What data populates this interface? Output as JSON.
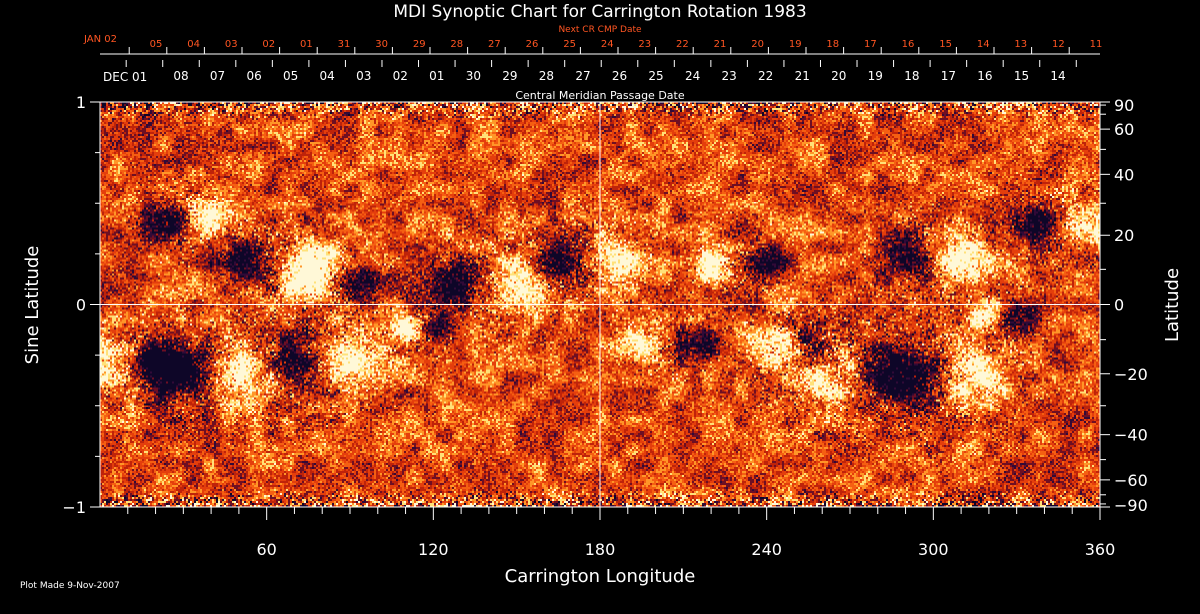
{
  "chart_data": {
    "type": "heatmap",
    "title": "MDI Synoptic Chart for Carrington Rotation 1983",
    "xlabel": "Carrington Longitude",
    "ylabel_left": "Sine Latitude",
    "ylabel_right": "Latitude",
    "xlim": [
      0,
      360
    ],
    "ylim": [
      -1,
      1
    ],
    "x_ticks_labeled": [
      60,
      120,
      180,
      240,
      300,
      360
    ],
    "x_minor_step": 10,
    "y_left_ticks": [
      {
        "v": 1,
        "label": "1"
      },
      {
        "v": 0,
        "label": "0"
      },
      {
        "v": -1,
        "label": "−1"
      }
    ],
    "y_left_minor": [
      -0.75,
      -0.5,
      -0.25,
      0.25,
      0.5,
      0.75
    ],
    "y_right_labeled": [
      90,
      60,
      40,
      20,
      0,
      -20,
      -40,
      -60,
      -90
    ],
    "y_right_labels": [
      "90",
      "60",
      "40",
      "20",
      "0",
      "−20",
      "−40",
      "−60",
      "−90"
    ],
    "y_right_minor_step": 10,
    "crosshair": {
      "x": 180,
      "y": 0
    },
    "colors": {
      "background": "#000000",
      "text": "#ffffff",
      "next_cr_text": "#ff5522",
      "field_neutral": "#e8400c",
      "field_positive": "#fff4c8",
      "field_negative": "#14093e"
    },
    "bipolar_regions": [
      {
        "lon": 12,
        "slat": -0.3,
        "lead": "positive",
        "sep": 14,
        "size": 1.2
      },
      {
        "lon": 32,
        "slat": 0.42,
        "lead": "negative",
        "sep": 10,
        "size": 0.9
      },
      {
        "lon": 40,
        "slat": -0.32,
        "lead": "negative",
        "sep": 16,
        "size": 1.3
      },
      {
        "lon": 65,
        "slat": 0.22,
        "lead": "negative",
        "sep": 18,
        "size": 1.0
      },
      {
        "lon": 80,
        "slat": -0.28,
        "lead": "negative",
        "sep": 14,
        "size": 1.4
      },
      {
        "lon": 85,
        "slat": 0.1,
        "lead": "positive",
        "sep": 14,
        "size": 0.9
      },
      {
        "lon": 115,
        "slat": -0.12,
        "lead": "positive",
        "sep": 6,
        "size": 0.6
      },
      {
        "lon": 140,
        "slat": 0.1,
        "lead": "negative",
        "sep": 12,
        "size": 1.2
      },
      {
        "lon": 176,
        "slat": 0.22,
        "lead": "negative",
        "sep": 12,
        "size": 1.1
      },
      {
        "lon": 205,
        "slat": -0.2,
        "lead": "positive",
        "sep": 14,
        "size": 0.8
      },
      {
        "lon": 230,
        "slat": 0.2,
        "lead": "positive",
        "sep": 12,
        "size": 0.9
      },
      {
        "lon": 250,
        "slat": -0.2,
        "lead": "positive",
        "sep": 8,
        "size": 0.9
      },
      {
        "lon": 272,
        "slat": -0.34,
        "lead": "positive",
        "sep": 10,
        "size": 1.5
      },
      {
        "lon": 300,
        "slat": 0.22,
        "lead": "negative",
        "sep": 12,
        "size": 1.1
      },
      {
        "lon": 305,
        "slat": -0.36,
        "lead": "negative",
        "sep": 12,
        "size": 1.2
      },
      {
        "lon": 325,
        "slat": -0.06,
        "lead": "positive",
        "sep": 8,
        "size": 0.8
      },
      {
        "lon": 345,
        "slat": 0.4,
        "lead": "negative",
        "sep": 12,
        "size": 1.0
      }
    ]
  },
  "top_scales": {
    "next_cr_label": "Next CR CMP Date",
    "next_cr_start": "JAN 02",
    "next_cr_days": [
      "05",
      "04",
      "03",
      "02",
      "01",
      "31",
      "30",
      "29",
      "28",
      "27",
      "26",
      "25",
      "24",
      "23",
      "22",
      "21",
      "20",
      "19",
      "18",
      "17",
      "16",
      "15",
      "14",
      "13",
      "12",
      "11"
    ],
    "cmp_label": "Central Meridian Passage Date",
    "cmp_start": "DEC 01",
    "cmp_days": [
      "08",
      "07",
      "06",
      "05",
      "04",
      "03",
      "02",
      "01",
      "30",
      "29",
      "28",
      "27",
      "26",
      "25",
      "24",
      "23",
      "22",
      "21",
      "20",
      "19",
      "18",
      "17",
      "16",
      "15",
      "14"
    ]
  },
  "footer": {
    "plot_made": "Plot Made  9-Nov-2007"
  }
}
